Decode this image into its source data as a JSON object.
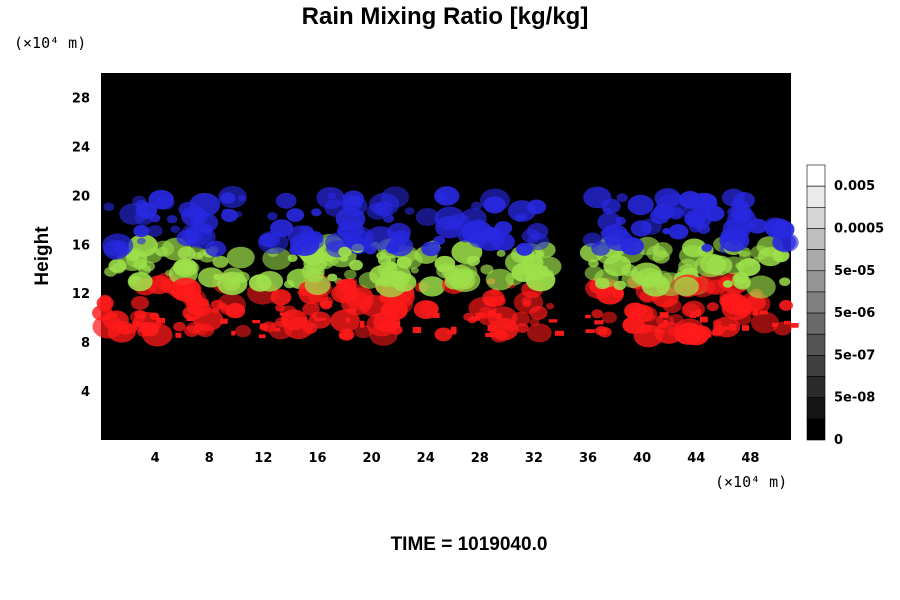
{
  "chart_data": {
    "type": "heatmap",
    "title": "Rain Mixing Ratio [kg/kg]",
    "ylabel": "Height",
    "y_unit": "(×10⁴ m)",
    "x_unit": "(×10⁴ m)",
    "footer": "TIME = 1019040.0",
    "xlim": [
      0,
      51
    ],
    "ylim": [
      0,
      30
    ],
    "x_ticks": [
      "4",
      "8",
      "12",
      "16",
      "20",
      "24",
      "28",
      "32",
      "36",
      "40",
      "44",
      "48"
    ],
    "y_ticks": [
      "4",
      "8",
      "12",
      "16",
      "20",
      "24",
      "28"
    ],
    "colorbar": {
      "levels": 13,
      "labels": [
        "0",
        "5e-08",
        "5e-07",
        "5e-06",
        "5e-05",
        "0.0005",
        "0.005"
      ],
      "range_colors": [
        "#000000",
        "#ffffff"
      ]
    },
    "layers": [
      {
        "color": "#ff1a1a",
        "y_range": [
          8.5,
          13
        ]
      },
      {
        "color": "#9de04a",
        "y_range": [
          12.5,
          16
        ]
      },
      {
        "color": "#2828e0",
        "y_range": [
          15.5,
          20
        ]
      }
    ],
    "clusters_x": [
      1.5,
      5,
      8.5,
      14,
      17,
      20,
      23.5,
      27.5,
      31,
      38.5,
      42.5,
      45.5,
      48.5
    ],
    "background": "#000000"
  }
}
